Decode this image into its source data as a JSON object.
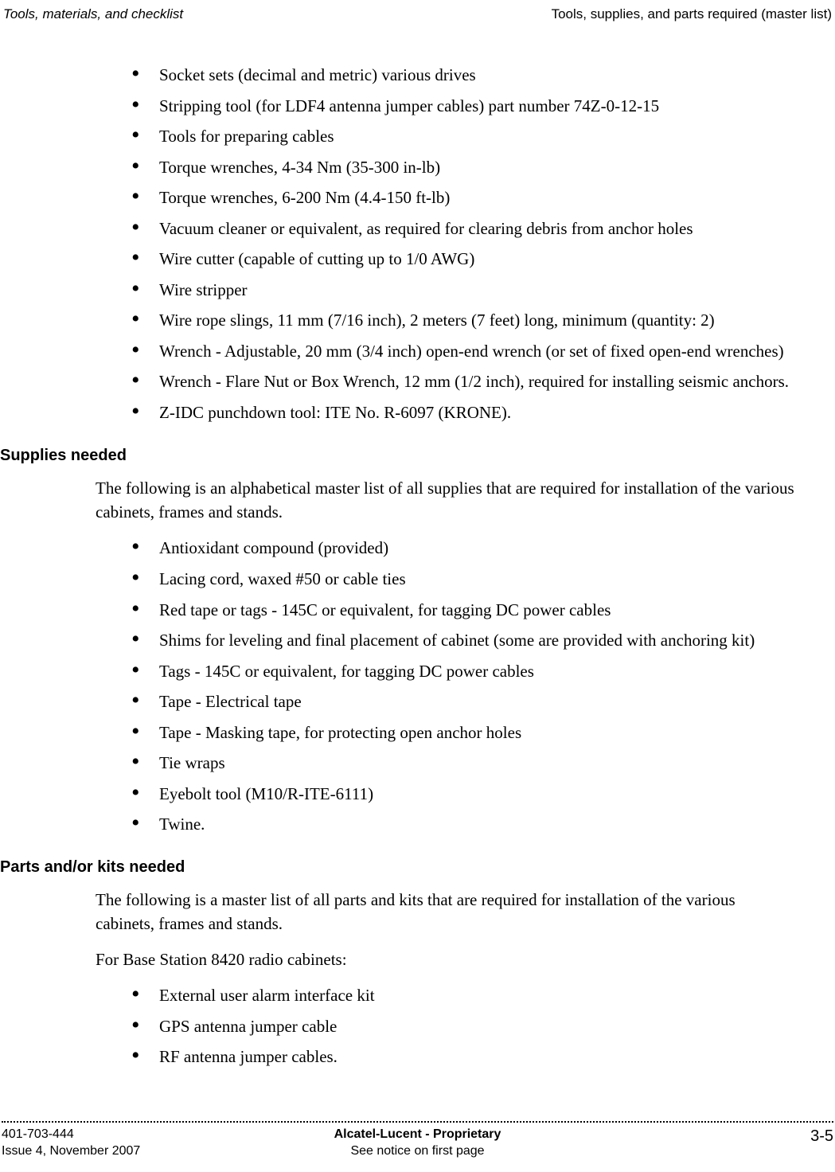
{
  "header": {
    "left": "Tools, materials, and checklist",
    "right": "Tools, supplies, and parts required (master list)"
  },
  "tools_list": [
    "Socket sets (decimal and metric) various drives",
    "Stripping tool (for LDF4 antenna jumper cables) part number 74Z-0-12-15",
    "Tools for preparing cables",
    "Torque wrenches, 4-34 Nm (35-300 in-lb)",
    "Torque wrenches, 6-200 Nm (4.4-150 ft-lb)",
    "Vacuum cleaner or equivalent, as required for clearing debris from anchor holes",
    "Wire cutter (capable of cutting up to 1/0 AWG)",
    "Wire stripper",
    "Wire rope slings, 11 mm (7/16 inch), 2 meters (7 feet) long, minimum (quantity: 2)",
    "Wrench - Adjustable, 20 mm (3/4 inch) open-end wrench (or set of fixed open-end wrenches)",
    "Wrench - Flare Nut or Box Wrench, 12 mm (1/2 inch), required for installing seismic anchors.",
    "Z-IDC punchdown tool: ITE No. R-6097 (KRONE)."
  ],
  "supplies": {
    "heading": "Supplies needed",
    "intro": "The following is an alphabetical master list of all supplies that are required for installation of the various cabinets, frames and stands.",
    "items": [
      "Antioxidant compound (provided)",
      "Lacing cord, waxed #50 or cable ties",
      "Red tape or tags - 145C or equivalent, for tagging DC power cables",
      "Shims for leveling and final placement of cabinet (some are provided with anchoring kit)",
      "Tags - 145C or equivalent, for tagging DC power cables",
      "Tape - Electrical tape",
      "Tape - Masking tape, for protecting open anchor holes",
      "Tie wraps",
      "Eyebolt tool (M10/R-ITE-6111)",
      "Twine."
    ]
  },
  "parts": {
    "heading": "Parts and/or kits needed",
    "intro1": "The following is a master list of all parts and kits that are required for installation of the various cabinets, frames and stands.",
    "intro2": "For Base Station 8420 radio cabinets:",
    "items": [
      "External user alarm interface kit",
      "GPS antenna jumper cable",
      "RF antenna jumper cables."
    ]
  },
  "footer": {
    "left1": "401-703-444",
    "left2": "Issue 4, November 2007",
    "center1": "Alcatel-Lucent - Proprietary",
    "center2": "See notice on first page",
    "right": "3-5"
  }
}
